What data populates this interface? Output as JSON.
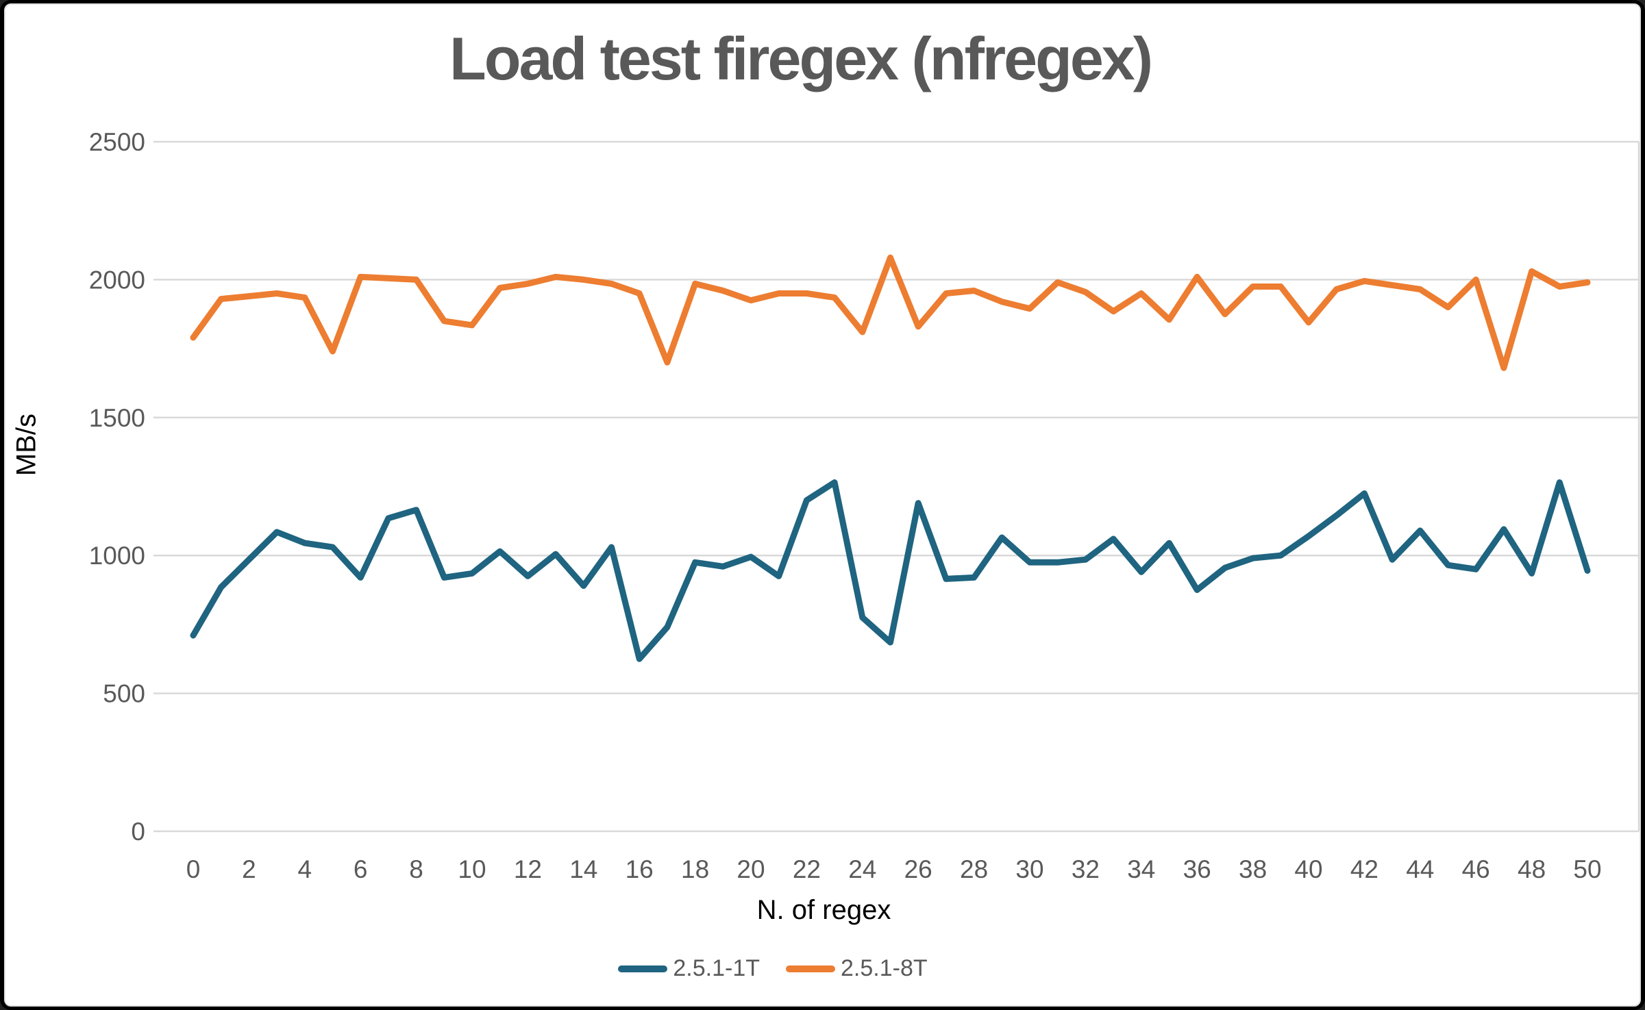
{
  "chart_data": {
    "type": "line",
    "title": "Load test firegex (nfregex)",
    "xlabel": "N. of regex",
    "ylabel": "MB/s",
    "xlim": [
      0,
      50
    ],
    "ylim": [
      0,
      2500
    ],
    "grid": "horizontal-gridlines",
    "legend_position": "bottom-center",
    "gridline_color": "#D9D9D9",
    "x_ticks": [
      0,
      2,
      4,
      6,
      8,
      10,
      12,
      14,
      16,
      18,
      20,
      22,
      24,
      26,
      28,
      30,
      32,
      34,
      36,
      38,
      40,
      42,
      44,
      46,
      48,
      50
    ],
    "y_ticks": [
      0,
      500,
      1000,
      1500,
      2000,
      2500
    ],
    "x": [
      0,
      1,
      2,
      3,
      4,
      5,
      6,
      7,
      8,
      9,
      10,
      11,
      12,
      13,
      14,
      15,
      16,
      17,
      18,
      19,
      20,
      21,
      22,
      23,
      24,
      25,
      26,
      27,
      28,
      29,
      30,
      31,
      32,
      33,
      34,
      35,
      36,
      37,
      38,
      39,
      40,
      41,
      42,
      43,
      44,
      45,
      46,
      47,
      48,
      49,
      50
    ],
    "series": [
      {
        "name": "2.5.1-1T",
        "color": "#1F6480",
        "values": [
          710,
          885,
          985,
          1085,
          1045,
          1030,
          920,
          1135,
          1165,
          920,
          935,
          1015,
          925,
          1005,
          890,
          1030,
          625,
          740,
          975,
          960,
          995,
          925,
          1200,
          1265,
          775,
          685,
          1190,
          915,
          920,
          1065,
          975,
          975,
          985,
          1060,
          940,
          1045,
          875,
          955,
          990,
          1000,
          1070,
          1145,
          1225,
          985,
          1090,
          965,
          950,
          1095,
          935,
          1265,
          945
        ]
      },
      {
        "name": "2.5.1-8T",
        "color": "#ED7D31",
        "values": [
          1790,
          1930,
          1940,
          1950,
          1935,
          1740,
          2010,
          2005,
          2000,
          1850,
          1835,
          1970,
          1985,
          2010,
          2000,
          1985,
          1950,
          1700,
          1985,
          1960,
          1925,
          1950,
          1950,
          1935,
          1810,
          2080,
          1830,
          1950,
          1960,
          1920,
          1895,
          1990,
          1955,
          1885,
          1950,
          1855,
          2010,
          1875,
          1975,
          1975,
          1845,
          1965,
          1995,
          1980,
          1965,
          1900,
          2000,
          1680,
          2030,
          1975,
          1990
        ]
      }
    ]
  },
  "colors": {
    "title": "#595959",
    "tick_labels": "#595959",
    "axis_titles": "#000000",
    "gridline": "#D9D9D9",
    "background": "#FFFFFF",
    "frame": "#000000"
  }
}
